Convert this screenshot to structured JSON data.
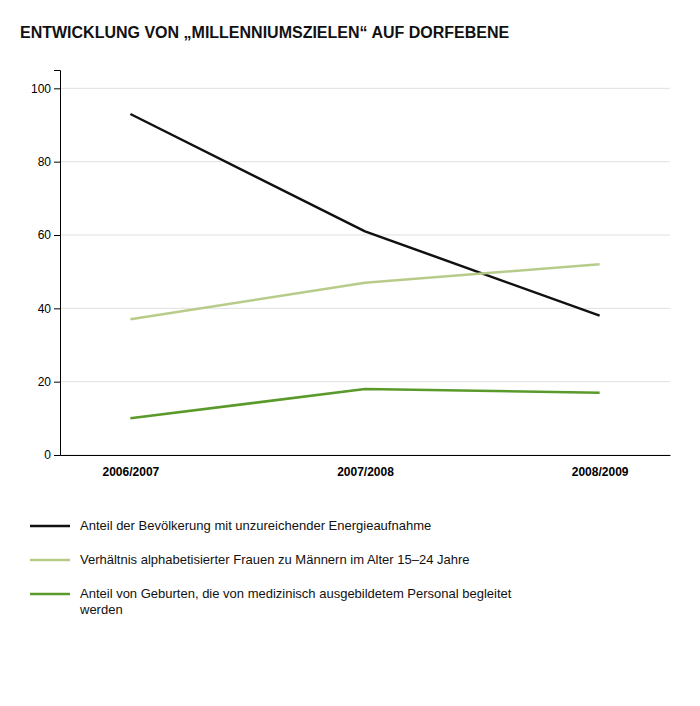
{
  "chart_data": {
    "type": "line",
    "title": "ENTWICKLUNG VON „MILLENNIUMSZIELEN“ AUF DORFEBENE",
    "categories": [
      "2006/2007",
      "2007/2008",
      "2008/2009"
    ],
    "series": [
      {
        "name": "Anteil der Bevölkerung mit unzureichender Energieaufnahme",
        "color": "#111111",
        "values": [
          93,
          61,
          38
        ]
      },
      {
        "name": "Verhältnis alphabetisierter Frauen zu Männern im Alter 15–24 Jahre",
        "color": "#b8cc8a",
        "values": [
          37,
          47,
          52
        ]
      },
      {
        "name": "Anteil von Geburten, die von medizinisch ausgebildetem Personal begleitet werden",
        "color": "#5a9a2a",
        "values": [
          10,
          18,
          17
        ]
      }
    ],
    "ylim": [
      0,
      105
    ],
    "yticks": [
      0,
      20,
      40,
      60,
      80,
      100
    ],
    "grid": true,
    "legend": "bottom"
  }
}
